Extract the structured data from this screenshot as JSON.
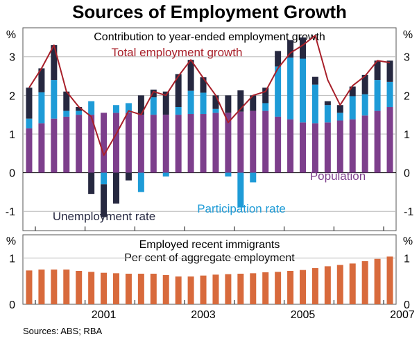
{
  "title": "Sources of Employment Growth",
  "source": "Sources: ABS; RBA",
  "units": "%",
  "colors": {
    "population": "#7d3f8c",
    "participation": "#1e9bd7",
    "unemployment": "#262840",
    "total_line": "#a8202a",
    "immigrants": "#d86a3c",
    "grid": "#b9b9b9",
    "frame": "#555555"
  },
  "chart_data": [
    {
      "type": "bar",
      "stacked": true,
      "subtitle": "Contribution to year-ended employment growth",
      "ylim": [
        -1.5,
        3.75
      ],
      "yticks": [
        -1,
        0,
        1,
        2,
        3
      ],
      "categories": [
        "Q4 1999",
        "Q1 2000",
        "Q2 2000",
        "Q3 2000",
        "Q4 2000",
        "Q1 2001",
        "Q2 2001",
        "Q3 2001",
        "Q4 2001",
        "Q1 2002",
        "Q2 2002",
        "Q3 2002",
        "Q4 2002",
        "Q1 2003",
        "Q2 2003",
        "Q3 2003",
        "Q4 2003",
        "Q1 2004",
        "Q2 2004",
        "Q3 2004",
        "Q4 2004",
        "Q1 2005",
        "Q2 2005",
        "Q3 2005",
        "Q4 2005",
        "Q1 2006",
        "Q2 2006",
        "Q3 2006",
        "Q4 2006",
        "Q1 2007"
      ],
      "xtick_labels": [
        "2001",
        "2003",
        "2005",
        "2007"
      ],
      "series": [
        {
          "name": "Population",
          "key": "population",
          "values": [
            1.15,
            1.28,
            1.4,
            1.45,
            1.5,
            1.5,
            1.55,
            1.55,
            1.55,
            1.5,
            1.5,
            1.5,
            1.5,
            1.52,
            1.52,
            1.55,
            1.55,
            1.58,
            1.6,
            1.6,
            1.45,
            1.38,
            1.3,
            1.28,
            1.3,
            1.35,
            1.38,
            1.48,
            1.6,
            1.7
          ]
        },
        {
          "name": "Participation rate",
          "key": "participation",
          "values": [
            0.25,
            0.8,
            1.0,
            0.15,
            0.1,
            0.35,
            -0.3,
            0.2,
            0.25,
            -0.5,
            0.45,
            -0.1,
            0.2,
            0.6,
            0.55,
            0.1,
            -0.1,
            -0.9,
            -0.25,
            0.2,
            1.3,
            1.6,
            1.65,
            1.0,
            0.45,
            0.2,
            0.6,
            0.55,
            0.8,
            0.65
          ]
        },
        {
          "name": "Unemployment rate",
          "key": "unemployment",
          "values": [
            0.8,
            0.62,
            0.9,
            0.5,
            0.1,
            -0.55,
            -0.85,
            -0.8,
            -0.2,
            0.5,
            0.2,
            0.6,
            0.85,
            0.8,
            0.4,
            0.35,
            0.45,
            0.55,
            0.4,
            0.4,
            0.4,
            0.45,
            0.55,
            0.2,
            0.1,
            0.2,
            0.25,
            0.5,
            0.5,
            0.55
          ]
        }
      ],
      "line": {
        "name": "Total employment growth",
        "values": [
          2.2,
          2.7,
          3.3,
          2.1,
          1.7,
          1.45,
          0.45,
          1.0,
          1.6,
          1.5,
          2.1,
          2.0,
          2.5,
          2.92,
          2.45,
          2.0,
          1.3,
          1.65,
          2.0,
          2.1,
          2.7,
          3.1,
          3.3,
          3.55,
          2.4,
          1.75,
          2.25,
          2.5,
          2.9,
          2.85
        ]
      },
      "annotations": [
        {
          "text": "Total employment growth",
          "key": "total_line"
        },
        {
          "text": "Population",
          "key": "population"
        },
        {
          "text": "Participation rate",
          "key": "participation"
        },
        {
          "text": "Unemployment rate",
          "key": "unemployment"
        }
      ]
    },
    {
      "type": "bar",
      "subtitle": "Employed recent immigrants",
      "subtitle2": "Per cent of aggregate employment",
      "ylim": [
        0,
        1.5
      ],
      "yticks": [
        0,
        1
      ],
      "categories": [
        "Q4 1999",
        "Q1 2000",
        "Q2 2000",
        "Q3 2000",
        "Q4 2000",
        "Q1 2001",
        "Q2 2001",
        "Q3 2001",
        "Q4 2001",
        "Q1 2002",
        "Q2 2002",
        "Q3 2002",
        "Q4 2002",
        "Q1 2003",
        "Q2 2003",
        "Q3 2003",
        "Q4 2003",
        "Q1 2004",
        "Q2 2004",
        "Q3 2004",
        "Q4 2004",
        "Q1 2005",
        "Q2 2005",
        "Q3 2005",
        "Q4 2005",
        "Q1 2006",
        "Q2 2006",
        "Q3 2006",
        "Q4 2006",
        "Q1 2007"
      ],
      "values": [
        0.73,
        0.75,
        0.75,
        0.75,
        0.72,
        0.7,
        0.68,
        0.67,
        0.66,
        0.66,
        0.66,
        0.63,
        0.6,
        0.6,
        0.62,
        0.64,
        0.65,
        0.66,
        0.67,
        0.69,
        0.7,
        0.72,
        0.74,
        0.78,
        0.82,
        0.85,
        0.88,
        0.93,
        0.98,
        1.03
      ]
    }
  ]
}
